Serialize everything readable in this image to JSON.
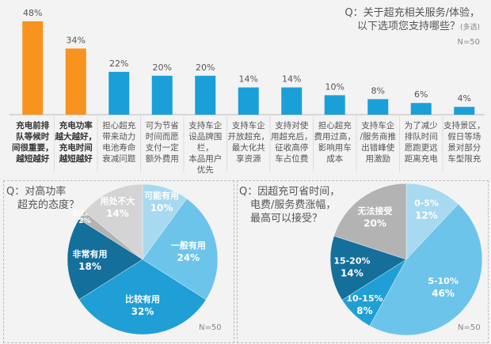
{
  "chart_data": [
    {
      "type": "bar",
      "title": "Q：关于超充相关服务/体验，以下选项您支持哪些？",
      "title_note": "(多选)",
      "sample": "N=50",
      "categories": [
        "充电前排队等候时间很重要，越短越好",
        "充电功率越大越好，充电时间越短越好",
        "担心超充带来动力电池寿命衰减问题",
        "可为节省时间而愿支付一定额外费用",
        "支持车企设品牌围栏，本品用户优先",
        "支持车企开放超充，最大化共享资源",
        "支持对使用超充后，征收高停车占位费",
        "担心超充费用过高，影响用车成本",
        "支持车企/服务商推出错峰使用激励",
        "为了减少排队时间愿跑更远距离充电",
        "支持景区，假日等场景对部分车型限充"
      ],
      "values": [
        48,
        34,
        22,
        20,
        20,
        14,
        14,
        10,
        8,
        6,
        4
      ],
      "value_labels": [
        "48%",
        "34%",
        "22%",
        "20%",
        "20%",
        "14%",
        "14%",
        "10%",
        "8%",
        "6%",
        "4%"
      ],
      "highlight_color": "#f7931e",
      "bar_color": "#1b9fd8",
      "highlighted": [
        0,
        1
      ],
      "ylim": [
        0,
        50
      ]
    },
    {
      "type": "pie",
      "title": "Q：对高功率超充的态度？",
      "sample": "N=50",
      "slices": [
        {
          "label": "可能有用",
          "value": 10,
          "text": "10%",
          "color": "#a7d9f1"
        },
        {
          "label": "一般有用",
          "value": 24,
          "text": "24%",
          "color": "#6cc4ea"
        },
        {
          "label": "比较有用",
          "value": 32,
          "text": "32%",
          "color": "#1f9fd6"
        },
        {
          "label": "非常有用",
          "value": 18,
          "text": "18%",
          "color": "#146f9b"
        },
        {
          "label": "言过其实",
          "value": 2,
          "text": "2%",
          "color": "#b3b3b3"
        },
        {
          "label": "用处不大",
          "value": 14,
          "text": "14%",
          "color": "#d4d4d4"
        }
      ]
    },
    {
      "type": "pie",
      "title": "Q：因超充可省时间，电费/服务费涨幅，最高可以接受？",
      "sample": "N=50",
      "slices": [
        {
          "label": "0-5%",
          "value": 12,
          "text": "12%",
          "color": "#a7d9f1"
        },
        {
          "label": "5-10%",
          "value": 46,
          "text": "46%",
          "color": "#6cc4ea"
        },
        {
          "label": "10-15%",
          "value": 8,
          "text": "8%",
          "color": "#1f9fd6"
        },
        {
          "label": "15-20%",
          "value": 14,
          "text": "14%",
          "color": "#146f9b"
        },
        {
          "label": "无法接受",
          "value": 20,
          "text": "20%",
          "color": "#b3b3b3"
        }
      ]
    }
  ],
  "pie1_title_lines": [
    "Q：对高功率",
    "超充的态度？"
  ],
  "pie2_title_lines": [
    "Q：因超充可省时间，",
    "电费/服务费涨幅，",
    "最高可以接受？"
  ],
  "bar_title_lines": [
    "Q：关于超充相关服务/体验，",
    "以下选项您支持哪些？"
  ]
}
